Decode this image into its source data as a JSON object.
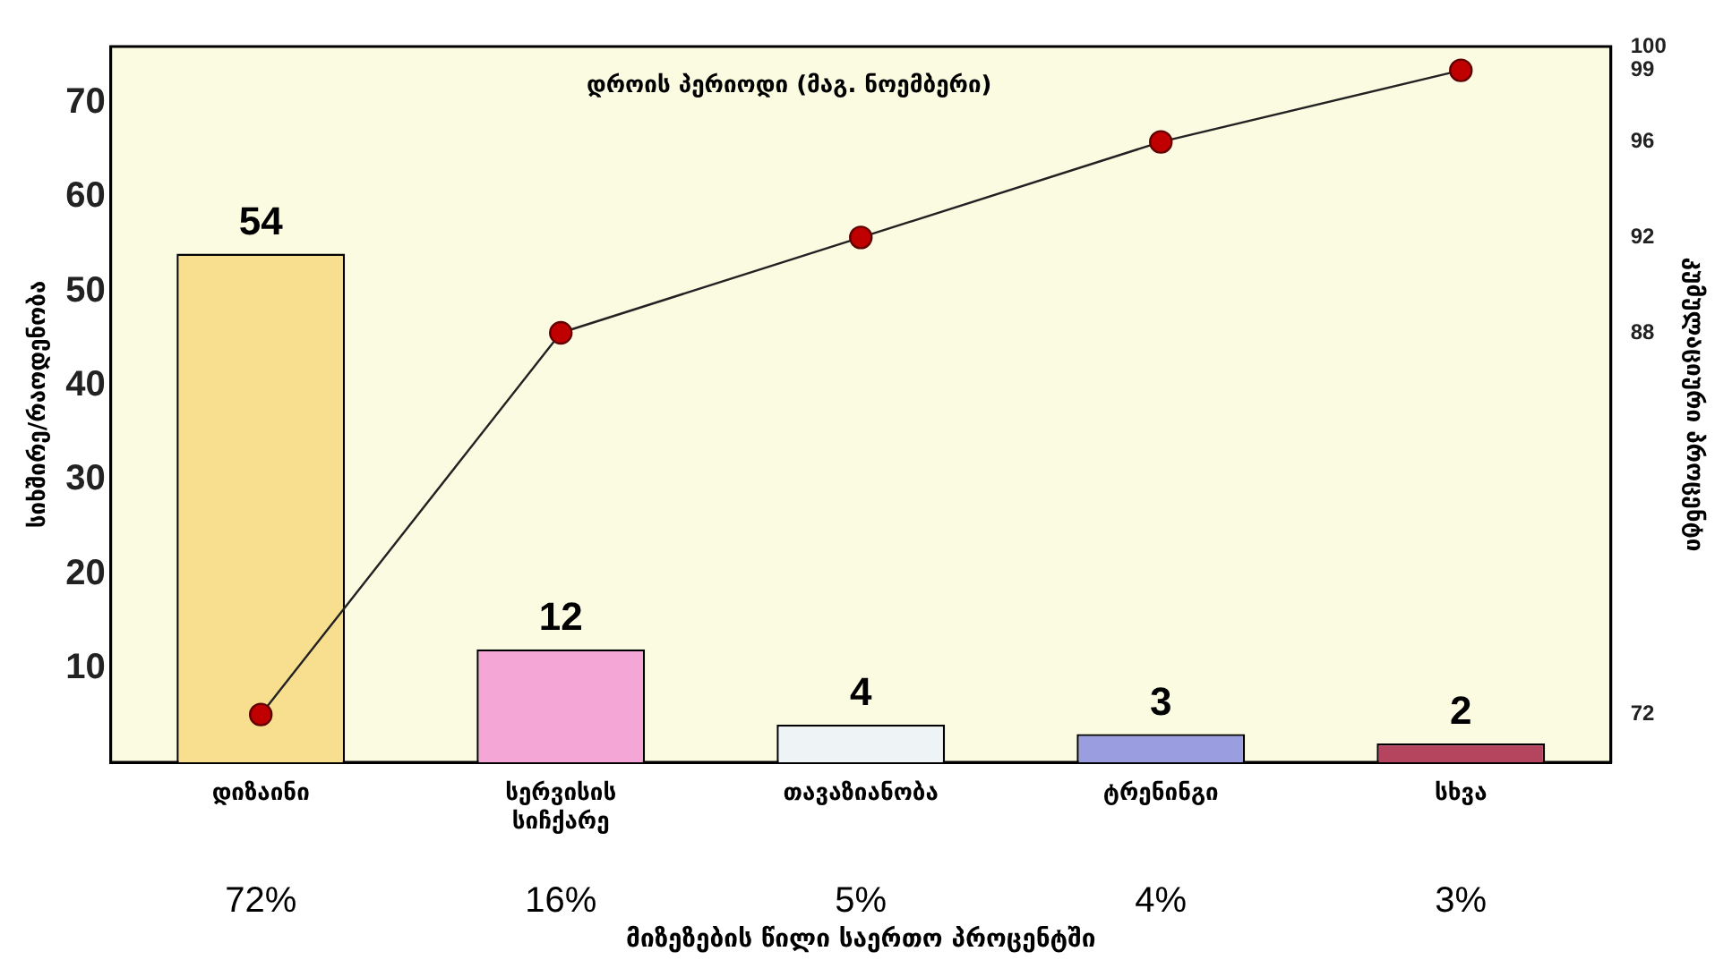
{
  "chart_data": {
    "type": "bar",
    "title": "დროის პერიოდი (მაგ. ნოემბერი)",
    "xlabel": "მიზეზების წილი საერთო პროცენტში",
    "ylabel": "სიხშირე/რაოდენობა",
    "y2label": "კუმულაციური პროცენტი",
    "categories": [
      "დიზაინი",
      "სერვისის სიჩქარე",
      "თავაზიანობა",
      "ტრენინგი",
      "სხვა"
    ],
    "series": [
      {
        "values": [
          54,
          12,
          4,
          3,
          2
        ],
        "value_labels": [
          "54",
          "12",
          "4",
          "3",
          "2"
        ],
        "colors": [
          "#f7df8f",
          "#f4a6d6",
          "#eef4f6",
          "#9a9ee0",
          "#b5445e"
        ]
      },
      {
        "type": "line",
        "axis": "y2",
        "color": "#222222",
        "marker": "circle",
        "values": [
          72,
          88,
          92,
          96,
          99
        ]
      }
    ],
    "ylim": [
      0,
      76
    ],
    "yticks": [
      10,
      20,
      30,
      40,
      50,
      60,
      70
    ],
    "y2lim": [
      70,
      100
    ],
    "y2ticks": [
      72,
      88,
      92,
      96,
      99,
      100
    ],
    "annotations": [
      "72%",
      "16%",
      "5%",
      "4%",
      "3%"
    ],
    "legend": false,
    "grid": false
  }
}
